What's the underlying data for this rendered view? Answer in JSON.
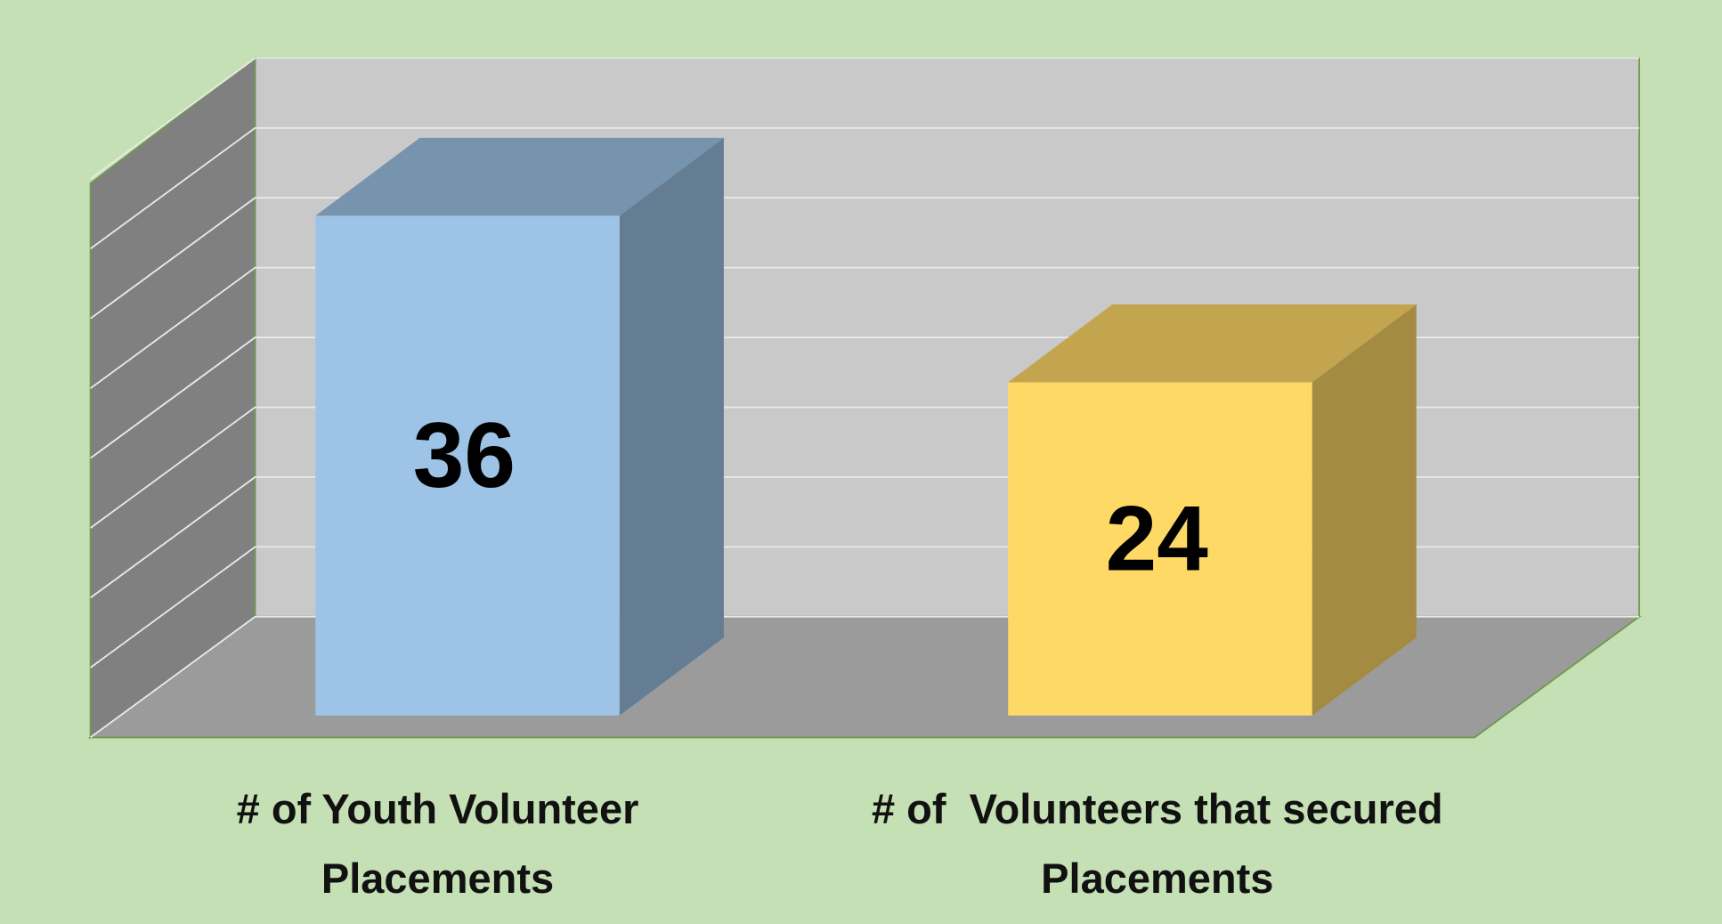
{
  "chart_data": {
    "type": "bar",
    "categories": [
      "# of Youth Volunteer Placements",
      "# of  Volunteers that secured Placements"
    ],
    "values": [
      36,
      24
    ],
    "colors": [
      "#9dc3e6",
      "#ffd966"
    ],
    "ylim": [
      0,
      40
    ],
    "yticks": [
      0,
      5,
      10,
      15,
      20,
      25,
      30,
      35,
      40
    ],
    "grid": true
  }
}
